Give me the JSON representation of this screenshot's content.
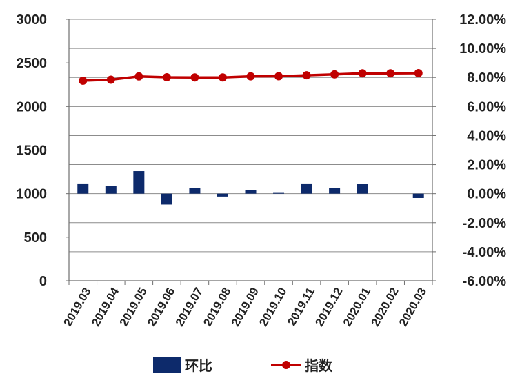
{
  "chart_data": {
    "type": "bar",
    "categories": [
      "2019.03",
      "2019.04",
      "2019.05",
      "2019.06",
      "2019.07",
      "2019.08",
      "2019.09",
      "2019.10",
      "2019.11",
      "2019.12",
      "2020.01",
      "2020.02",
      "2020.03"
    ],
    "series": [
      {
        "name": "环比",
        "type": "bar",
        "axis": "right",
        "color": "#0d2a6b",
        "values": [
          0.7,
          0.55,
          1.55,
          -0.75,
          0.4,
          -0.2,
          0.25,
          0.05,
          0.7,
          0.4,
          0.65,
          0.0,
          -0.3
        ]
      },
      {
        "name": "指数",
        "type": "line",
        "axis": "left",
        "color": "#c00000",
        "values": [
          2296,
          2307,
          2345,
          2335,
          2333,
          2333,
          2346,
          2347,
          2358,
          2369,
          2381,
          2381,
          2383
        ]
      }
    ],
    "left_axis": {
      "min": 0,
      "max": 3000,
      "ticks": [
        0,
        500,
        1000,
        1500,
        2000,
        2500,
        3000
      ]
    },
    "right_axis": {
      "min": -6,
      "max": 12,
      "ticks": [
        -6,
        -4,
        -2,
        0,
        2,
        4,
        6,
        8,
        10,
        12
      ],
      "tick_labels": [
        "-6.00%",
        "-4.00%",
        "-2.00%",
        "0.00%",
        "2.00%",
        "4.00%",
        "6.00%",
        "8.00%",
        "10.00%",
        "12.00%"
      ]
    },
    "grid": true,
    "legend_position": "bottom",
    "legend": [
      {
        "label": "环比",
        "color": "#0d2a6b",
        "kind": "bar"
      },
      {
        "label": "指数",
        "color": "#c00000",
        "kind": "line"
      }
    ]
  }
}
